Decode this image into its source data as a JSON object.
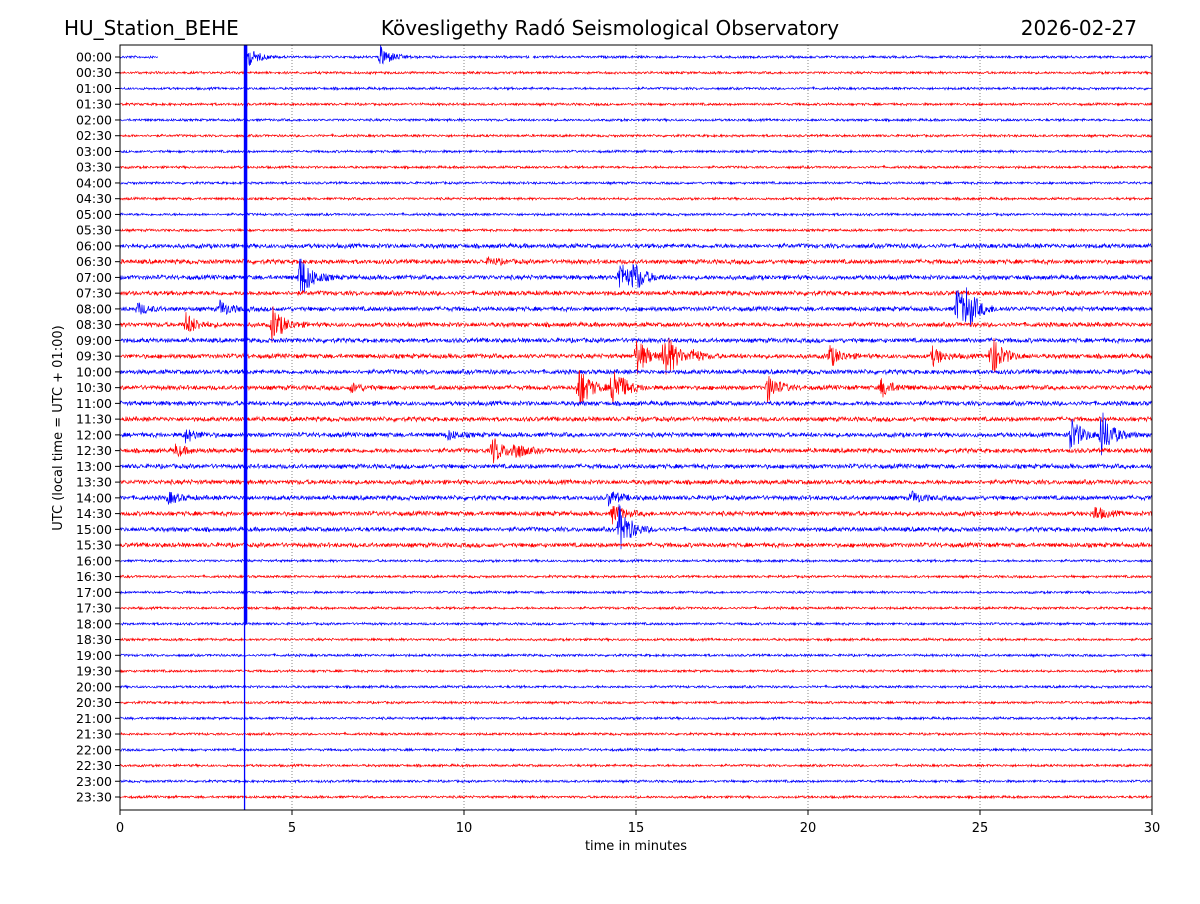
{
  "chart_data": {
    "type": "line",
    "title_left": "HU_Station_BEHE",
    "title": "Kövesligethy Radó Seismological Observatory",
    "title_right": "2026-02-27",
    "xlabel": "time in minutes",
    "ylabel": "UTC (local time = UTC + 01:00)",
    "xlim": [
      0,
      30
    ],
    "xticks": [
      0,
      5,
      10,
      15,
      20,
      25,
      30
    ],
    "grid": "x-dotted",
    "colors": [
      "#0000ff",
      "#ff0000"
    ],
    "rows": [
      "00:00",
      "00:30",
      "01:00",
      "01:30",
      "02:00",
      "02:30",
      "03:00",
      "03:30",
      "04:00",
      "04:30",
      "05:00",
      "05:30",
      "06:00",
      "06:30",
      "07:00",
      "07:30",
      "08:00",
      "08:30",
      "09:00",
      "09:30",
      "10:00",
      "10:30",
      "11:00",
      "11:30",
      "12:00",
      "12:30",
      "13:00",
      "13:30",
      "14:00",
      "14:30",
      "15:00",
      "15:30",
      "16:00",
      "16:30",
      "17:00",
      "17:30",
      "18:00",
      "18:30",
      "19:00",
      "19:30",
      "20:00",
      "20:30",
      "21:00",
      "21:30",
      "22:00",
      "22:30",
      "23:00",
      "23:30"
    ],
    "gaps": [
      {
        "row": 0,
        "from": 1.1,
        "to": 3.6
      },
      {
        "row": 0,
        "from": 11.9,
        "to": 12.0
      }
    ],
    "glitch_line_minute": 3.65,
    "events": [
      {
        "row": 0,
        "minute": 3.7,
        "amp": 10
      },
      {
        "row": 0,
        "minute": 7.55,
        "amp": 12
      },
      {
        "row": 13,
        "minute": 10.7,
        "amp": 4
      },
      {
        "row": 14,
        "minute": 5.2,
        "amp": 26
      },
      {
        "row": 14,
        "minute": 14.5,
        "amp": 18
      },
      {
        "row": 14,
        "minute": 14.9,
        "amp": 14
      },
      {
        "row": 16,
        "minute": 0.5,
        "amp": 6
      },
      {
        "row": 16,
        "minute": 2.9,
        "amp": 8
      },
      {
        "row": 16,
        "minute": 24.3,
        "amp": 24
      },
      {
        "row": 16,
        "minute": 24.6,
        "amp": 16
      },
      {
        "row": 17,
        "minute": 1.9,
        "amp": 12
      },
      {
        "row": 17,
        "minute": 4.4,
        "amp": 20
      },
      {
        "row": 19,
        "minute": 15.0,
        "amp": 20
      },
      {
        "row": 19,
        "minute": 15.8,
        "amp": 30
      },
      {
        "row": 19,
        "minute": 16.6,
        "amp": 6
      },
      {
        "row": 19,
        "minute": 20.6,
        "amp": 12
      },
      {
        "row": 19,
        "minute": 23.6,
        "amp": 10
      },
      {
        "row": 19,
        "minute": 25.3,
        "amp": 24
      },
      {
        "row": 21,
        "minute": 6.7,
        "amp": 5
      },
      {
        "row": 21,
        "minute": 13.3,
        "amp": 26
      },
      {
        "row": 21,
        "minute": 14.3,
        "amp": 26
      },
      {
        "row": 21,
        "minute": 18.8,
        "amp": 15
      },
      {
        "row": 21,
        "minute": 22.1,
        "amp": 10
      },
      {
        "row": 24,
        "minute": 1.9,
        "amp": 7
      },
      {
        "row": 24,
        "minute": 9.5,
        "amp": 5
      },
      {
        "row": 24,
        "minute": 27.6,
        "amp": 20
      },
      {
        "row": 24,
        "minute": 28.5,
        "amp": 26
      },
      {
        "row": 25,
        "minute": 1.6,
        "amp": 6
      },
      {
        "row": 25,
        "minute": 10.8,
        "amp": 15
      },
      {
        "row": 25,
        "minute": 11.4,
        "amp": 10
      },
      {
        "row": 28,
        "minute": 1.4,
        "amp": 6
      },
      {
        "row": 28,
        "minute": 14.2,
        "amp": 8
      },
      {
        "row": 28,
        "minute": 23.0,
        "amp": 6
      },
      {
        "row": 29,
        "minute": 14.3,
        "amp": 10
      },
      {
        "row": 29,
        "minute": 28.3,
        "amp": 8
      },
      {
        "row": 30,
        "minute": 14.5,
        "amp": 26
      }
    ]
  }
}
